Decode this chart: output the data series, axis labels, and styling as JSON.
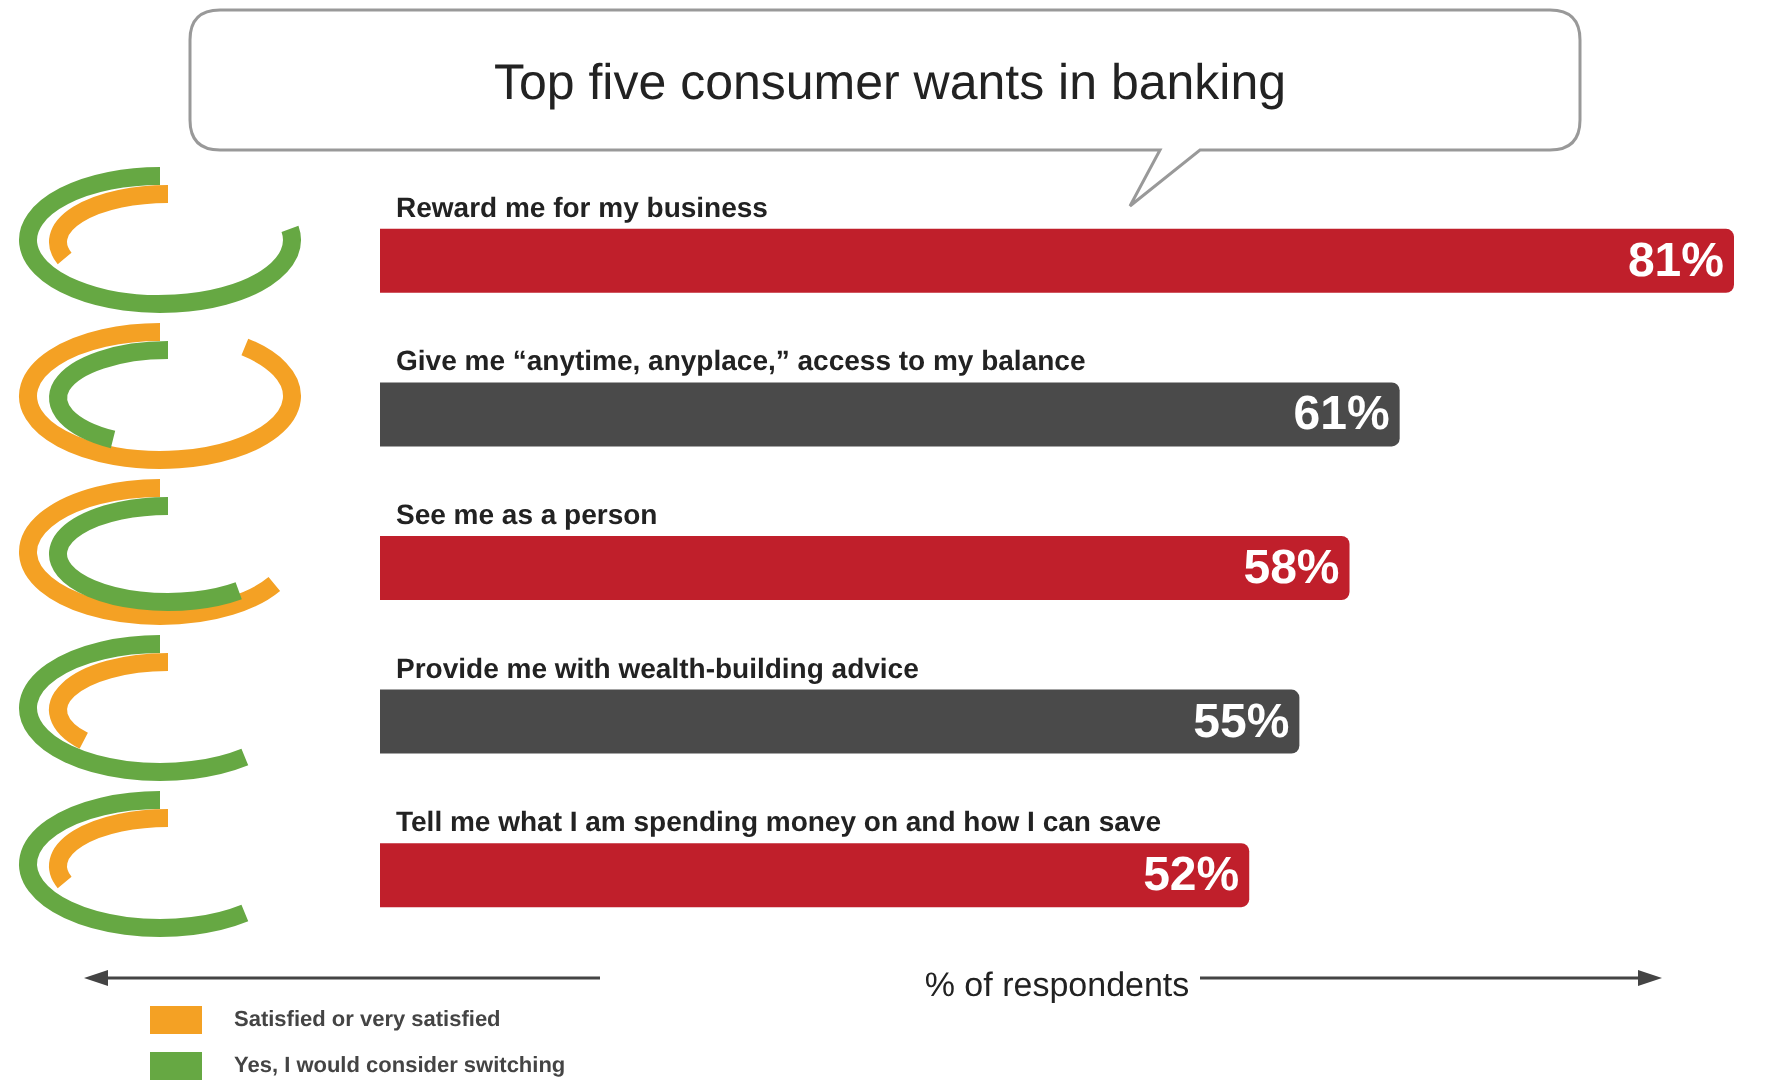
{
  "chart_data": [
    {
      "type": "bar",
      "orientation": "horizontal",
      "title": "Top five consumer wants in banking",
      "xlabel": "% of respondents",
      "categories": [
        "Reward me for my business",
        "Give me “anytime, anyplace,” access to my balance",
        "See me as a person",
        "Provide me with wealth-building advice",
        "Tell me what I am spending money on and how I can save"
      ],
      "values": [
        81,
        61,
        58,
        55,
        52
      ],
      "value_labels": [
        "81%",
        "61%",
        "58%",
        "55%",
        "52%"
      ],
      "colors": [
        "#c01f2b",
        "#4a4a4a",
        "#c01f2b",
        "#4a4a4a",
        "#c01f2b"
      ],
      "grid": false
    },
    {
      "type": "other",
      "annotations": [
        "Satisfied or very satisfied",
        "Yes, I would consider switching"
      ]
    }
  ]
}
